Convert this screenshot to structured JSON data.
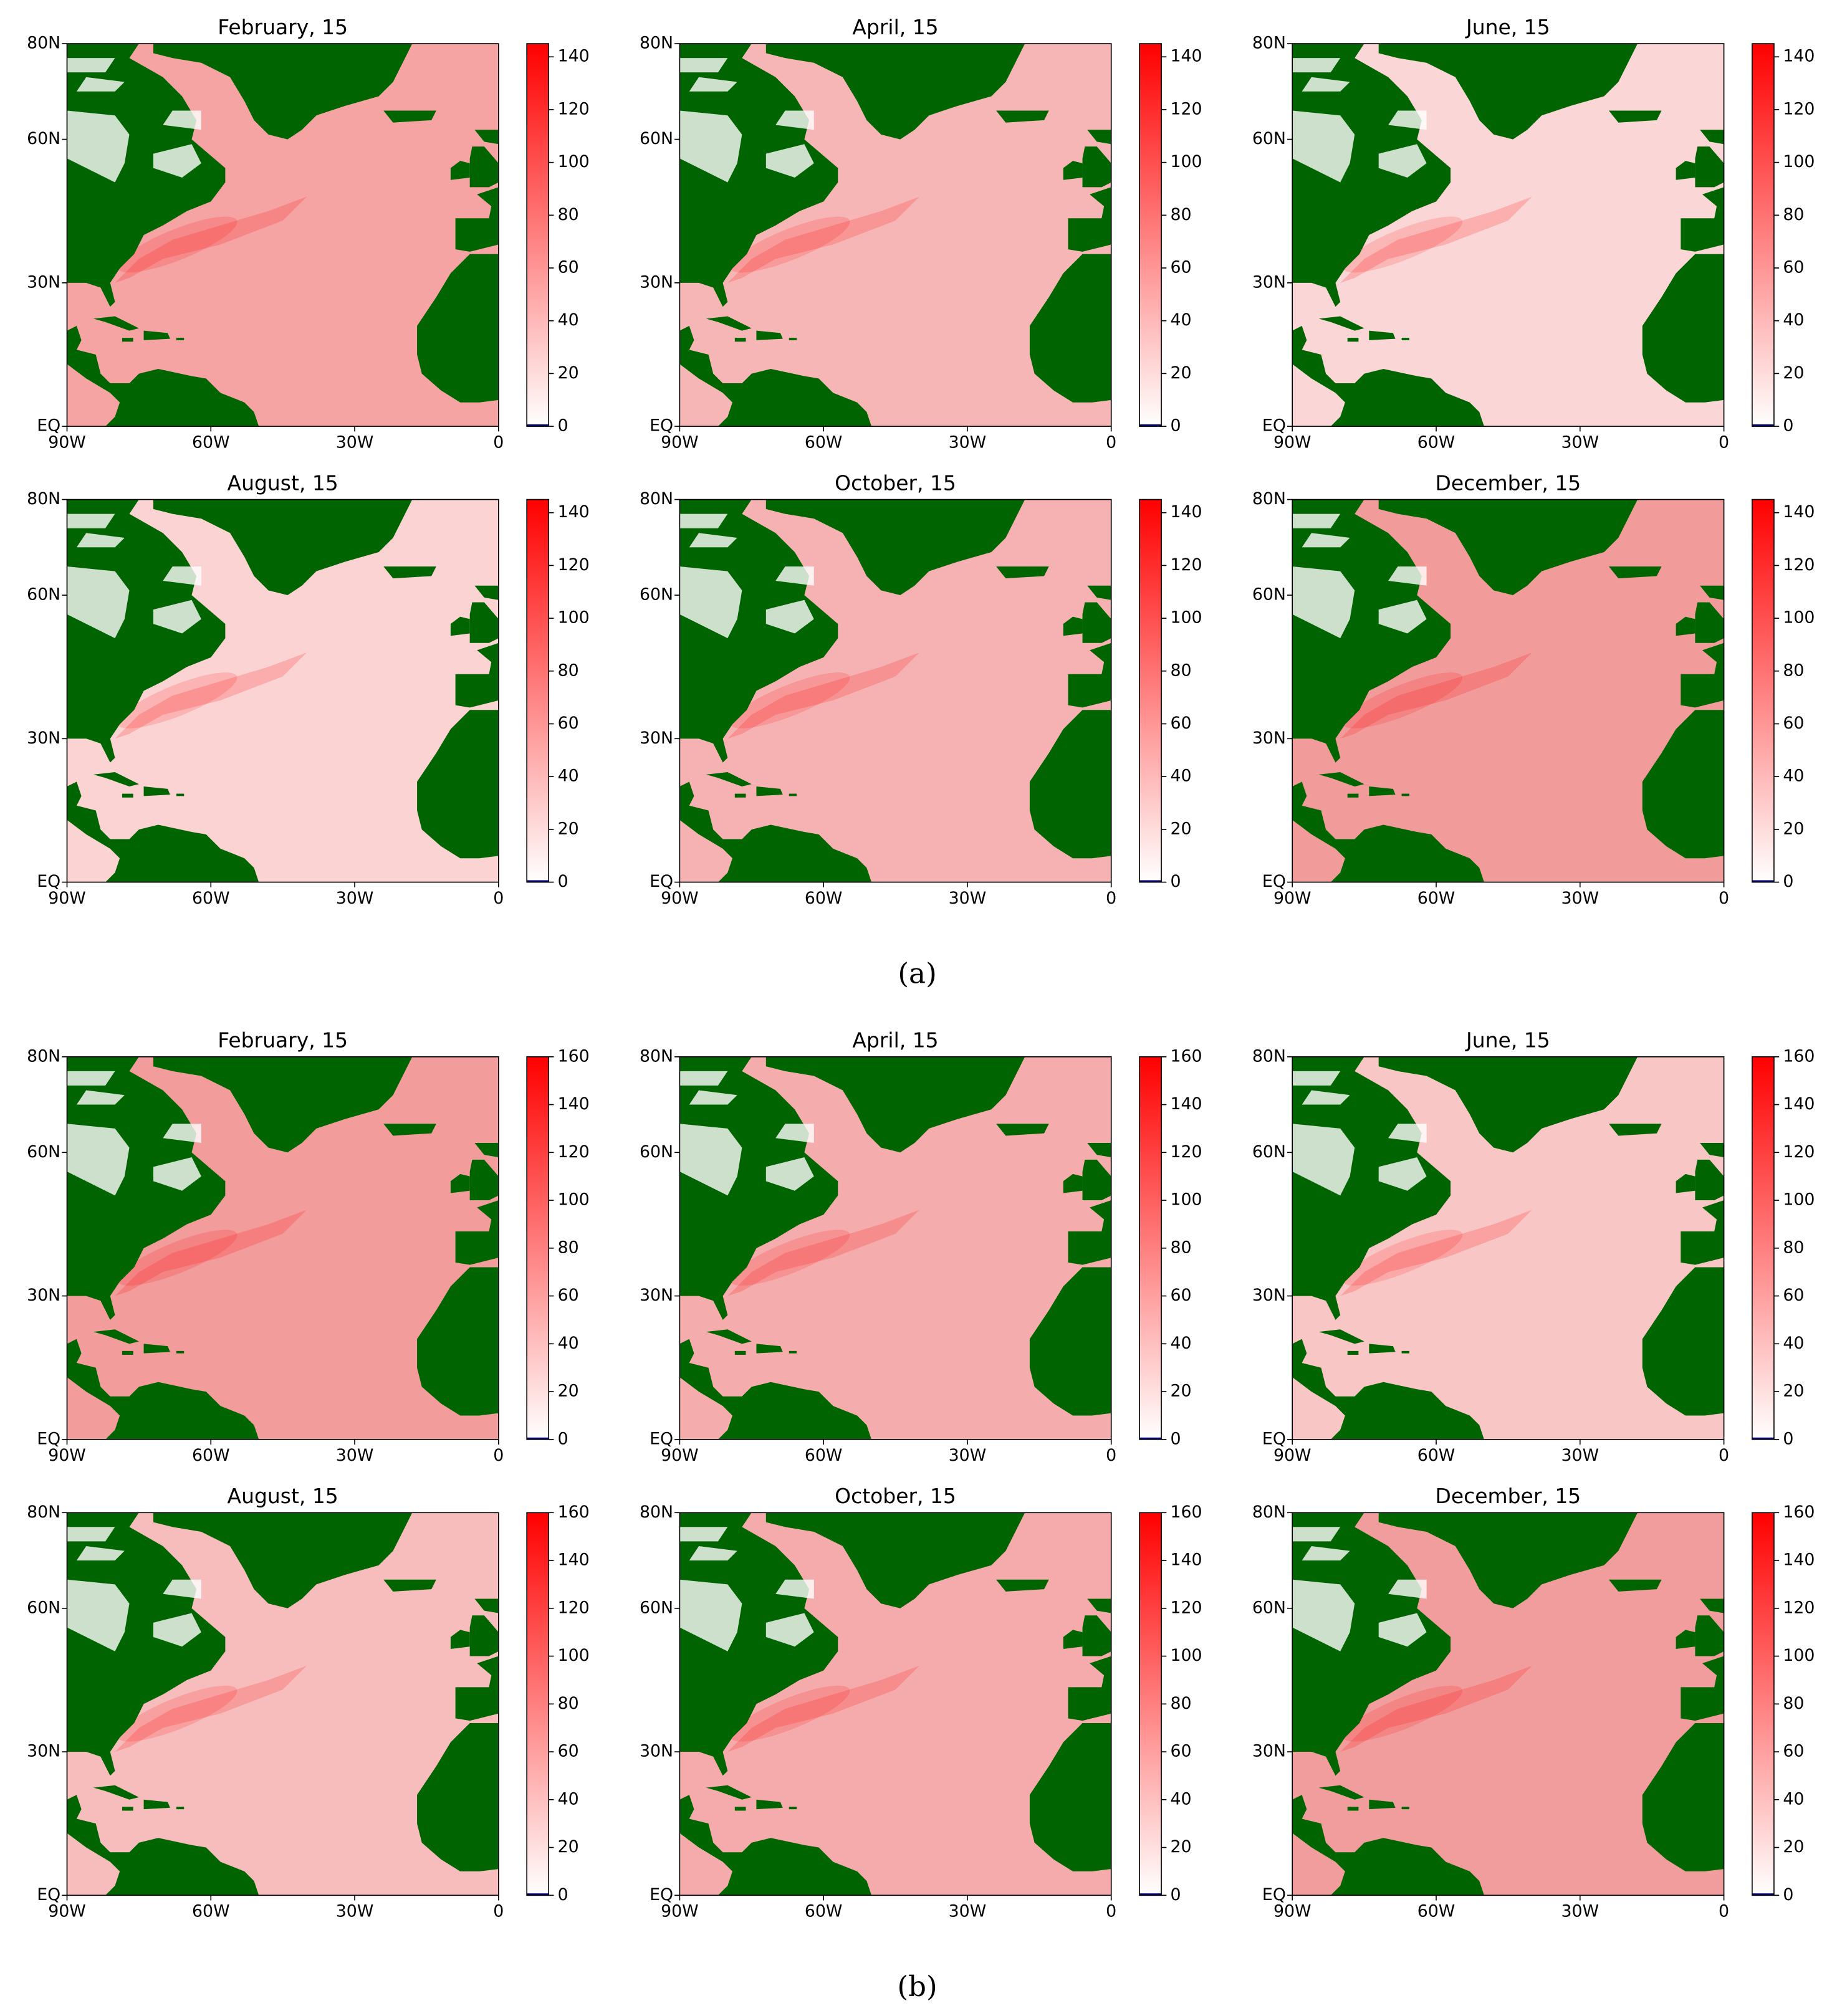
{
  "chart_data": [
    {
      "type": "heatmap",
      "title": "February, 15",
      "xlim": [
        -90,
        0
      ],
      "ylim": [
        0,
        80
      ],
      "xticks": [
        {
          "value": -90,
          "label": "90W"
        },
        {
          "value": -60,
          "label": "60W"
        },
        {
          "value": -30,
          "label": "30W"
        },
        0
      ],
      "yticks": [
        {
          "value": 0,
          "label": "EQ"
        },
        {
          "value": 30,
          "label": "30N"
        },
        {
          "value": 60,
          "label": "60N"
        },
        {
          "value": 80,
          "label": "80N"
        }
      ],
      "clim": [
        0,
        145
      ],
      "cticks": [
        0,
        20,
        40,
        60,
        80,
        100,
        120,
        140
      ],
      "colormap": [
        "#ffffff",
        "#ff0000"
      ],
      "land_color": "#006400",
      "color": "#f5a3a3"
    },
    {
      "type": "heatmap",
      "title": "April, 15",
      "xlim": [
        -90,
        0
      ],
      "ylim": [
        0,
        80
      ],
      "xticks": [
        {
          "value": -90,
          "label": "90W"
        },
        {
          "value": -60,
          "label": "60W"
        },
        {
          "value": -30,
          "label": "30W"
        },
        0
      ],
      "yticks": [
        {
          "value": 0,
          "label": "EQ"
        },
        {
          "value": 30,
          "label": "30N"
        },
        {
          "value": 60,
          "label": "60N"
        },
        {
          "value": 80,
          "label": "80N"
        }
      ],
      "clim": [
        0,
        145
      ],
      "cticks": [
        0,
        20,
        40,
        60,
        80,
        100,
        120,
        140
      ],
      "colormap": [
        "#ffffff",
        "#ff0000"
      ],
      "land_color": "#006400",
      "color": "#f7b6b6"
    },
    {
      "type": "heatmap",
      "title": "June, 15",
      "xlim": [
        -90,
        0
      ],
      "ylim": [
        0,
        80
      ],
      "xticks": [
        {
          "value": -90,
          "label": "90W"
        },
        {
          "value": -60,
          "label": "60W"
        },
        {
          "value": -30,
          "label": "30W"
        },
        0
      ],
      "yticks": [
        {
          "value": 0,
          "label": "EQ"
        },
        {
          "value": 30,
          "label": "30N"
        },
        {
          "value": 60,
          "label": "60N"
        },
        {
          "value": 80,
          "label": "80N"
        }
      ],
      "clim": [
        0,
        145
      ],
      "cticks": [
        0,
        20,
        40,
        60,
        80,
        100,
        120,
        140
      ],
      "colormap": [
        "#ffffff",
        "#ff0000"
      ],
      "land_color": "#006400",
      "color": "#fbd6d6"
    },
    {
      "type": "heatmap",
      "title": "August, 15",
      "xlim": [
        -90,
        0
      ],
      "ylim": [
        0,
        80
      ],
      "xticks": [
        {
          "value": -90,
          "label": "90W"
        },
        {
          "value": -60,
          "label": "60W"
        },
        {
          "value": -30,
          "label": "30W"
        },
        0
      ],
      "yticks": [
        {
          "value": 0,
          "label": "EQ"
        },
        {
          "value": 30,
          "label": "30N"
        },
        {
          "value": 60,
          "label": "60N"
        },
        {
          "value": 80,
          "label": "80N"
        }
      ],
      "clim": [
        0,
        145
      ],
      "cticks": [
        0,
        20,
        40,
        60,
        80,
        100,
        120,
        140
      ],
      "colormap": [
        "#ffffff",
        "#ff0000"
      ],
      "land_color": "#006400",
      "color": "#fbd3d3"
    },
    {
      "type": "heatmap",
      "title": "October, 15",
      "xlim": [
        -90,
        0
      ],
      "ylim": [
        0,
        80
      ],
      "xticks": [
        {
          "value": -90,
          "label": "90W"
        },
        {
          "value": -60,
          "label": "60W"
        },
        {
          "value": -30,
          "label": "30W"
        },
        0
      ],
      "yticks": [
        {
          "value": 0,
          "label": "EQ"
        },
        {
          "value": 30,
          "label": "30N"
        },
        {
          "value": 60,
          "label": "60N"
        },
        {
          "value": 80,
          "label": "80N"
        }
      ],
      "clim": [
        0,
        145
      ],
      "cticks": [
        0,
        20,
        40,
        60,
        80,
        100,
        120,
        140
      ],
      "colormap": [
        "#ffffff",
        "#ff0000"
      ],
      "land_color": "#006400",
      "color": "#f6b2b2"
    },
    {
      "type": "heatmap",
      "title": "December, 15",
      "xlim": [
        -90,
        0
      ],
      "ylim": [
        0,
        80
      ],
      "xticks": [
        {
          "value": -90,
          "label": "90W"
        },
        {
          "value": -60,
          "label": "60W"
        },
        {
          "value": -30,
          "label": "30W"
        },
        0
      ],
      "yticks": [
        {
          "value": 0,
          "label": "EQ"
        },
        {
          "value": 30,
          "label": "30N"
        },
        {
          "value": 60,
          "label": "60N"
        },
        {
          "value": 80,
          "label": "80N"
        }
      ],
      "clim": [
        0,
        145
      ],
      "cticks": [
        0,
        20,
        40,
        60,
        80,
        100,
        120,
        140
      ],
      "colormap": [
        "#ffffff",
        "#ff0000"
      ],
      "land_color": "#006400",
      "color": "#f29b9b"
    },
    {
      "type": "heatmap",
      "title": "February, 15",
      "xlim": [
        -90,
        0
      ],
      "ylim": [
        0,
        80
      ],
      "xticks": [
        {
          "value": -90,
          "label": "90W"
        },
        {
          "value": -60,
          "label": "60W"
        },
        {
          "value": -30,
          "label": "30W"
        },
        0
      ],
      "yticks": [
        {
          "value": 0,
          "label": "EQ"
        },
        {
          "value": 30,
          "label": "30N"
        },
        {
          "value": 60,
          "label": "60N"
        },
        {
          "value": 80,
          "label": "80N"
        }
      ],
      "clim": [
        0,
        160
      ],
      "cticks": [
        0,
        20,
        40,
        60,
        80,
        100,
        120,
        140,
        160
      ],
      "colormap": [
        "#ffffff",
        "#ff0000"
      ],
      "land_color": "#006400",
      "color": "#f39c9c"
    },
    {
      "type": "heatmap",
      "title": "April, 15",
      "xlim": [
        -90,
        0
      ],
      "ylim": [
        0,
        80
      ],
      "xticks": [
        {
          "value": -90,
          "label": "90W"
        },
        {
          "value": -60,
          "label": "60W"
        },
        {
          "value": -30,
          "label": "30W"
        },
        0
      ],
      "yticks": [
        {
          "value": 0,
          "label": "EQ"
        },
        {
          "value": 30,
          "label": "30N"
        },
        {
          "value": 60,
          "label": "60N"
        },
        {
          "value": 80,
          "label": "80N"
        }
      ],
      "clim": [
        0,
        160
      ],
      "cticks": [
        0,
        20,
        40,
        60,
        80,
        100,
        120,
        140,
        160
      ],
      "colormap": [
        "#ffffff",
        "#ff0000"
      ],
      "land_color": "#006400",
      "color": "#f5acac"
    },
    {
      "type": "heatmap",
      "title": "June, 15",
      "xlim": [
        -90,
        0
      ],
      "ylim": [
        0,
        80
      ],
      "xticks": [
        {
          "value": -90,
          "label": "90W"
        },
        {
          "value": -60,
          "label": "60W"
        },
        {
          "value": -30,
          "label": "30W"
        },
        0
      ],
      "yticks": [
        {
          "value": 0,
          "label": "EQ"
        },
        {
          "value": 30,
          "label": "30N"
        },
        {
          "value": 60,
          "label": "60N"
        },
        {
          "value": 80,
          "label": "80N"
        }
      ],
      "clim": [
        0,
        160
      ],
      "cticks": [
        0,
        20,
        40,
        60,
        80,
        100,
        120,
        140,
        160
      ],
      "colormap": [
        "#ffffff",
        "#ff0000"
      ],
      "land_color": "#006400",
      "color": "#f9c6c6"
    },
    {
      "type": "heatmap",
      "title": "August, 15",
      "xlim": [
        -90,
        0
      ],
      "ylim": [
        0,
        80
      ],
      "xticks": [
        {
          "value": -90,
          "label": "90W"
        },
        {
          "value": -60,
          "label": "60W"
        },
        {
          "value": -30,
          "label": "30W"
        },
        0
      ],
      "yticks": [
        {
          "value": 0,
          "label": "EQ"
        },
        {
          "value": 30,
          "label": "30N"
        },
        {
          "value": 60,
          "label": "60N"
        },
        {
          "value": 80,
          "label": "80N"
        }
      ],
      "clim": [
        0,
        160
      ],
      "cticks": [
        0,
        20,
        40,
        60,
        80,
        100,
        120,
        140,
        160
      ],
      "colormap": [
        "#ffffff",
        "#ff0000"
      ],
      "land_color": "#006400",
      "color": "#f7bdbd"
    },
    {
      "type": "heatmap",
      "title": "October, 15",
      "xlim": [
        -90,
        0
      ],
      "ylim": [
        0,
        80
      ],
      "xticks": [
        {
          "value": -90,
          "label": "90W"
        },
        {
          "value": -60,
          "label": "60W"
        },
        {
          "value": -30,
          "label": "30W"
        },
        0
      ],
      "yticks": [
        {
          "value": 0,
          "label": "EQ"
        },
        {
          "value": 30,
          "label": "30N"
        },
        {
          "value": 60,
          "label": "60N"
        },
        {
          "value": 80,
          "label": "80N"
        }
      ],
      "clim": [
        0,
        160
      ],
      "cticks": [
        0,
        20,
        40,
        60,
        80,
        100,
        120,
        140,
        160
      ],
      "colormap": [
        "#ffffff",
        "#ff0000"
      ],
      "land_color": "#006400",
      "color": "#f5abab"
    },
    {
      "type": "heatmap",
      "title": "December, 15",
      "xlim": [
        -90,
        0
      ],
      "ylim": [
        0,
        80
      ],
      "xticks": [
        {
          "value": -90,
          "label": "90W"
        },
        {
          "value": -60,
          "label": "60W"
        },
        {
          "value": -30,
          "label": "30W"
        },
        0
      ],
      "yticks": [
        {
          "value": 0,
          "label": "EQ"
        },
        {
          "value": 30,
          "label": "30N"
        },
        {
          "value": 60,
          "label": "60N"
        },
        {
          "value": 80,
          "label": "80N"
        }
      ],
      "clim": [
        0,
        160
      ],
      "cticks": [
        0,
        20,
        40,
        60,
        80,
        100,
        120,
        140,
        160
      ],
      "colormap": [
        "#ffffff",
        "#ff0000"
      ],
      "land_color": "#006400",
      "color": "#f29d9d"
    }
  ],
  "captions": [
    "(a)",
    "(b)"
  ]
}
